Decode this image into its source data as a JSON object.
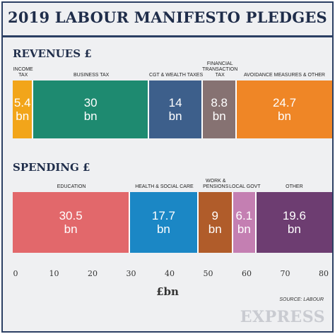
{
  "header": {
    "title": "2019 LABOUR MANIFESTO PLEDGES"
  },
  "chart_data": {
    "type": "bar",
    "orientation": "horizontal-stacked",
    "unit_label": "£bn",
    "xlim": [
      0,
      80
    ],
    "x_ticks": [
      "0",
      "10",
      "20",
      "30",
      "40",
      "50",
      "60",
      "70",
      "80"
    ],
    "source": "SOURCE: LABOUR",
    "groups": [
      {
        "key": "revenues",
        "title": "REVENUES £",
        "segments": [
          {
            "label": "INCOME TAX",
            "value": 5.4,
            "display": "5.4",
            "unit": "bn",
            "color": "#f2a51a"
          },
          {
            "label": "BUSINESS TAX",
            "value": 30,
            "display": "30",
            "unit": "bn",
            "color": "#1e8a70"
          },
          {
            "label": "CGT & WEALTH TAXES",
            "value": 14,
            "display": "14",
            "unit": "bn",
            "color": "#3d5f8b"
          },
          {
            "label": "FINANCIAL TRANSACTION TAX",
            "value": 8.8,
            "display": "8.8",
            "unit": "bn",
            "color": "#867272"
          },
          {
            "label": "AVOIDANCE MEASURES & OTHER",
            "value": 24.7,
            "display": "24.7",
            "unit": "bn",
            "color": "#ef8626"
          }
        ]
      },
      {
        "key": "spending",
        "title": "SPENDING £",
        "segments": [
          {
            "label": "EDUCATION",
            "value": 30.5,
            "display": "30.5",
            "unit": "bn",
            "color": "#e2686b"
          },
          {
            "label": "HEALTH & SOCIAL CARE",
            "value": 17.7,
            "display": "17.7",
            "unit": "bn",
            "color": "#1b87c5"
          },
          {
            "label": "WORK & PENSIONS",
            "value": 9,
            "display": "9",
            "unit": "bn",
            "color": "#b05c2a"
          },
          {
            "label": "LOCAL GOVT",
            "value": 6.1,
            "display": "6.1",
            "unit": "bn",
            "color": "#c47fb2"
          },
          {
            "label": "OTHER",
            "value": 19.6,
            "display": "19.6",
            "unit": "bn",
            "color": "#6d3d71"
          }
        ]
      }
    ]
  },
  "branding": {
    "logo_text": "EXPRESS"
  }
}
